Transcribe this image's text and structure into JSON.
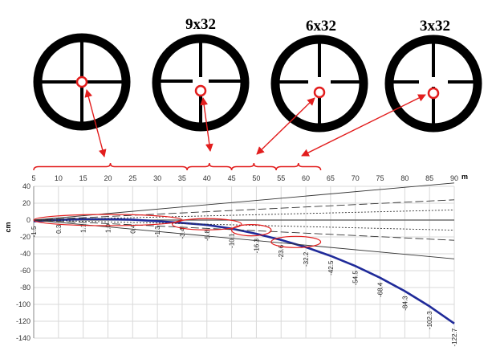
{
  "scopes": [
    {
      "title": "",
      "reticle": "crosshair-no-gap"
    },
    {
      "title": "9x32",
      "reticle": "crosshair-small-gap"
    },
    {
      "title": "6x32",
      "reticle": "crosshair-medium-gap"
    },
    {
      "title": "3x32",
      "reticle": "crosshair-large-gap"
    }
  ],
  "colors": {
    "annotation": "#e21d1d",
    "trajectory": "#1f2a99",
    "ring": "#000000",
    "grid": "#d9d9d9",
    "envelope": "#333333"
  },
  "brackets": [
    {
      "from": 5,
      "to": 36
    },
    {
      "from": 36,
      "to": 45
    },
    {
      "from": 45,
      "to": 54
    },
    {
      "from": 54,
      "to": 63
    }
  ],
  "chart_data": {
    "type": "line",
    "x_unit": "m",
    "y_unit": "cm",
    "xlim": [
      5,
      90
    ],
    "ylim": [
      -140,
      40
    ],
    "x_ticks": [
      5,
      10,
      15,
      20,
      25,
      30,
      35,
      40,
      45,
      50,
      55,
      60,
      65,
      70,
      75,
      80,
      85,
      90
    ],
    "y_ticks": [
      40,
      20,
      0,
      -20,
      -40,
      -60,
      -80,
      -100,
      -120,
      -140
    ],
    "grid": true,
    "series": [
      {
        "role": "trajectory",
        "style": "solid-thick",
        "x": [
          5,
          10,
          15,
          20,
          25,
          30,
          35,
          40,
          45,
          50,
          55,
          60,
          65,
          70,
          75,
          80,
          85,
          90
        ],
        "y": [
          -1.5,
          0.3,
          1.1,
          1.0,
          0.4,
          -1.3,
          -3.4,
          -5.8,
          -10.1,
          -16.3,
          -23.6,
          -32.2,
          -42.5,
          -54.5,
          -68.4,
          -84.3,
          -102.3,
          -122.7
        ]
      },
      {
        "role": "upper-outer",
        "style": "solid",
        "x": [
          5,
          90
        ],
        "y": [
          0,
          44
        ]
      },
      {
        "role": "upper-dash",
        "style": "dashed",
        "x": [
          5,
          90
        ],
        "y": [
          0,
          24
        ]
      },
      {
        "role": "upper-dot",
        "style": "dotted",
        "x": [
          5,
          90
        ],
        "y": [
          0,
          12
        ]
      },
      {
        "role": "lower-dot",
        "style": "dotted",
        "x": [
          5,
          90
        ],
        "y": [
          0,
          -12
        ]
      },
      {
        "role": "lower-dash",
        "style": "dashed",
        "x": [
          5,
          90
        ],
        "y": [
          0,
          -24
        ]
      },
      {
        "role": "lower-outer",
        "style": "solid",
        "x": [
          5,
          90
        ],
        "y": [
          0,
          -46
        ]
      }
    ],
    "data_labels": [
      "-1.5",
      "0.3",
      "1.1",
      "1.0",
      "0.4",
      "-1.3",
      "-3.4",
      "-5.8",
      "-10.1",
      "-16.3",
      "-23.6",
      "-32.2",
      "-42.5",
      "-54.5",
      "-68.4",
      "-84.3",
      "-102.3",
      "-122.7"
    ],
    "highlight_ellipses": [
      {
        "from": 5,
        "to": 35,
        "y": 0
      },
      {
        "from": 33,
        "to": 47,
        "y": -5
      },
      {
        "from": 45,
        "to": 53,
        "y": -12
      },
      {
        "from": 53,
        "to": 63,
        "y": -26
      }
    ]
  }
}
